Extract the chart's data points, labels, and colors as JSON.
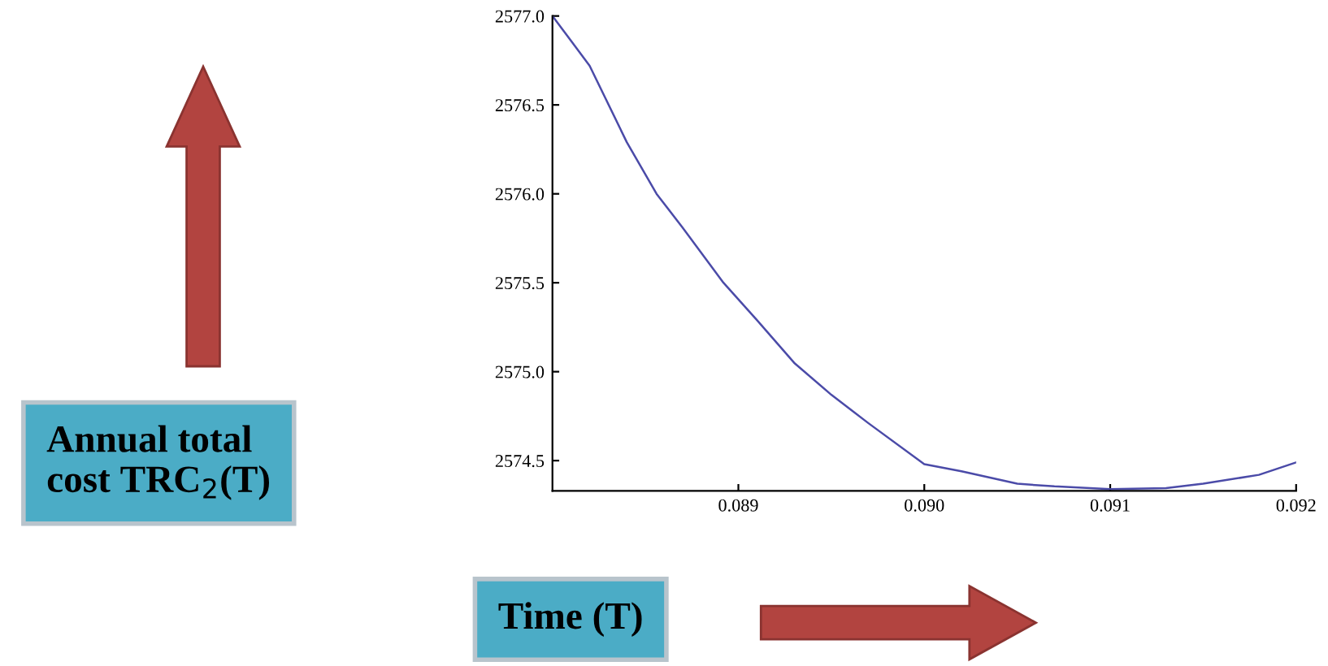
{
  "chart_data": {
    "type": "line",
    "annotations": [
      "Annual total\ncost TRC$_{2}$(T)",
      "Time (T)"
    ],
    "x": [
      0.088,
      0.0881,
      0.0882,
      0.0884,
      0.08856,
      0.0887,
      0.08892,
      0.0891,
      0.0893,
      0.0895,
      0.0897,
      0.09,
      0.0902,
      0.0905,
      0.0907,
      0.091,
      0.0913,
      0.0915,
      0.0918,
      0.092
    ],
    "series": [
      {
        "color": "#4b4ba8",
        "values": [
          2577.0,
          2576.86,
          2576.72,
          2576.29,
          2576.0,
          2575.81,
          2575.5,
          2575.29,
          2575.05,
          2574.87,
          2574.71,
          2574.48,
          2574.44,
          2574.37,
          2574.355,
          2574.34,
          2574.345,
          2574.37,
          2574.42,
          2574.49
        ]
      }
    ],
    "xlim": [
      0.088,
      0.092
    ],
    "ylim": [
      2574.33,
      2577.0
    ],
    "xticks": [
      {
        "value": 0.089,
        "label": "0.089"
      },
      {
        "value": 0.09,
        "label": "0.090"
      },
      {
        "value": 0.091,
        "label": "0.091"
      },
      {
        "value": 0.092,
        "label": "0.092"
      }
    ],
    "yticks": [
      {
        "value": 2574.5,
        "label": "2574.5"
      },
      {
        "value": 2575.0,
        "label": "2575.0"
      },
      {
        "value": 2575.5,
        "label": "2575.5"
      },
      {
        "value": 2576.0,
        "label": "2576.0"
      },
      {
        "value": 2576.5,
        "label": "2576.5"
      },
      {
        "value": 2577.0,
        "label": "2577.0"
      }
    ],
    "grid": false,
    "legend": false,
    "marker": "none",
    "line_style": "solid"
  }
}
